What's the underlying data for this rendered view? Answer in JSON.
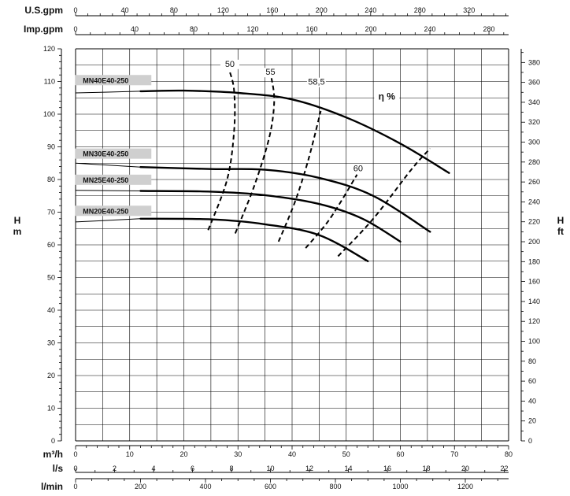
{
  "chart_data": {
    "type": "line",
    "title": "",
    "axes": {
      "left": {
        "label_line1": "H",
        "label_line2": "m",
        "range": [
          0,
          120
        ],
        "major_ticks": [
          0,
          10,
          20,
          30,
          40,
          50,
          60,
          70,
          80,
          90,
          100,
          110,
          120
        ]
      },
      "right": {
        "label_line1": "H",
        "label_line2": "ft",
        "range": [
          0,
          393.7
        ],
        "major_ticks": [
          0,
          20,
          40,
          60,
          80,
          100,
          120,
          140,
          160,
          180,
          200,
          220,
          240,
          260,
          280,
          300,
          320,
          340,
          360,
          380
        ]
      },
      "bottom_primary": {
        "label": "m³/h",
        "range": [
          0,
          80
        ],
        "major_ticks": [
          0,
          10,
          20,
          30,
          40,
          50,
          60,
          70,
          80
        ]
      },
      "bottom_ls": {
        "label": "l/s",
        "range": [
          0,
          22.222
        ],
        "major_ticks": [
          0,
          2,
          4,
          6,
          8,
          10,
          12,
          14,
          16,
          18,
          20,
          22
        ]
      },
      "bottom_lmin": {
        "label": "l/min",
        "range": [
          0,
          1333.3
        ],
        "major_ticks": [
          0,
          200,
          400,
          600,
          800,
          1000,
          1200
        ]
      },
      "top_usgpm": {
        "label": "U.S.gpm",
        "range": [
          0,
          352.2
        ],
        "major_ticks": [
          0,
          40,
          80,
          120,
          160,
          200,
          240,
          280,
          320
        ]
      },
      "top_impgpm": {
        "label": "Imp.gpm",
        "range": [
          0,
          293.3
        ],
        "major_ticks": [
          0,
          40,
          80,
          120,
          160,
          200,
          240,
          280
        ]
      },
      "grid": true
    },
    "efficiency_label": "η %",
    "series": [
      {
        "name": "MN40E40-250",
        "thin": [
          [
            0,
            106.5
          ],
          [
            12,
            107
          ]
        ],
        "thick": [
          [
            12,
            107
          ],
          [
            20,
            107.2
          ],
          [
            30,
            106.5
          ],
          [
            40,
            104.5
          ],
          [
            50,
            99
          ],
          [
            60,
            91
          ],
          [
            69,
            82
          ]
        ]
      },
      {
        "name": "MN30E40-250",
        "thin": [
          [
            0,
            85
          ],
          [
            12,
            83.8
          ]
        ],
        "thick": [
          [
            12,
            83.8
          ],
          [
            25,
            83.2
          ],
          [
            35,
            83
          ],
          [
            45,
            80.5
          ],
          [
            55,
            75
          ],
          [
            65.5,
            64
          ]
        ]
      },
      {
        "name": "MN25E40-250",
        "thin": [
          [
            0,
            76.7
          ],
          [
            12,
            76.5
          ]
        ],
        "thick": [
          [
            12,
            76.5
          ],
          [
            25,
            76.3
          ],
          [
            35,
            75.2
          ],
          [
            45,
            72.5
          ],
          [
            53,
            68
          ],
          [
            60,
            61
          ]
        ]
      },
      {
        "name": "MN20E40-250",
        "thin": [
          [
            0,
            67
          ],
          [
            12,
            68
          ]
        ],
        "thick": [
          [
            12,
            68
          ],
          [
            25,
            67.8
          ],
          [
            35,
            66.3
          ],
          [
            45,
            63
          ],
          [
            54,
            55
          ]
        ]
      }
    ],
    "efficiency_curves": [
      {
        "label": "50",
        "points": [
          [
            24.5,
            64.5
          ],
          [
            28,
            80
          ],
          [
            29.3,
            95
          ],
          [
            29.3,
            107
          ],
          [
            28.5,
            113
          ]
        ]
      },
      {
        "label": "55",
        "points": [
          [
            29.5,
            63.5
          ],
          [
            33,
            78
          ],
          [
            35.8,
            93
          ],
          [
            36.7,
            104
          ],
          [
            36.2,
            111
          ]
        ]
      },
      {
        "label": "58,5",
        "points": [
          [
            37.5,
            61
          ],
          [
            40.5,
            73
          ],
          [
            43,
            86
          ],
          [
            45.3,
            101
          ]
        ]
      },
      {
        "label": "60",
        "points": [
          [
            42.5,
            59
          ],
          [
            47,
            68
          ],
          [
            52,
            81.5
          ]
        ]
      },
      {
        "label": "",
        "points": [
          [
            48.5,
            56.5
          ],
          [
            55,
            68
          ],
          [
            62,
            83
          ],
          [
            65.5,
            89.5
          ]
        ]
      }
    ],
    "labels": {
      "series_tags": [
        "MN40E40-250",
        "MN30E40-250",
        "MN25E40-250",
        "MN20E40-250"
      ],
      "eff_tags": [
        "50",
        "55",
        "58,5",
        "60"
      ]
    }
  }
}
